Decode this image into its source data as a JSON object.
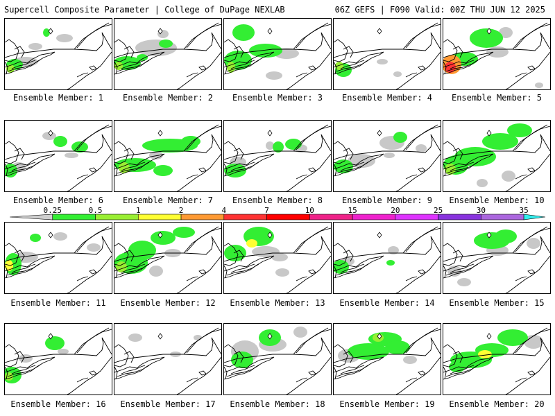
{
  "header": {
    "left": "Supercell Composite Parameter | College of DuPage NEXLAB",
    "right": "06Z GEFS | F090 Valid: 00Z THU JUN 12 2025"
  },
  "members": [
    {
      "label": "Ensemble Member: 1"
    },
    {
      "label": "Ensemble Member: 2"
    },
    {
      "label": "Ensemble Member: 3"
    },
    {
      "label": "Ensemble Member: 4"
    },
    {
      "label": "Ensemble Member: 5"
    },
    {
      "label": "Ensemble Member: 6"
    },
    {
      "label": "Ensemble Member: 7"
    },
    {
      "label": "Ensemble Member: 8"
    },
    {
      "label": "Ensemble Member: 9"
    },
    {
      "label": "Ensemble Member: 10"
    },
    {
      "label": "Ensemble Member: 11"
    },
    {
      "label": "Ensemble Member: 12"
    },
    {
      "label": "Ensemble Member: 13"
    },
    {
      "label": "Ensemble Member: 14"
    },
    {
      "label": "Ensemble Member: 15"
    },
    {
      "label": "Ensemble Member: 16"
    },
    {
      "label": "Ensemble Member: 17"
    },
    {
      "label": "Ensemble Member: 18"
    },
    {
      "label": "Ensemble Member: 19"
    },
    {
      "label": "Ensemble Member: 20"
    }
  ],
  "colorbar": {
    "labels": [
      "0.25",
      "0.5",
      "1",
      "2",
      "4",
      "7",
      "10",
      "15",
      "20",
      "25",
      "30",
      "35"
    ],
    "colors": [
      "#cfcfcf",
      "#33ee33",
      "#99ee33",
      "#ffff33",
      "#ff9933",
      "#ff3333",
      "#ff0000",
      "#ee2288",
      "#ee22cc",
      "#dd33ff",
      "#8833dd",
      "#aa66dd",
      "#33eeee"
    ]
  }
}
